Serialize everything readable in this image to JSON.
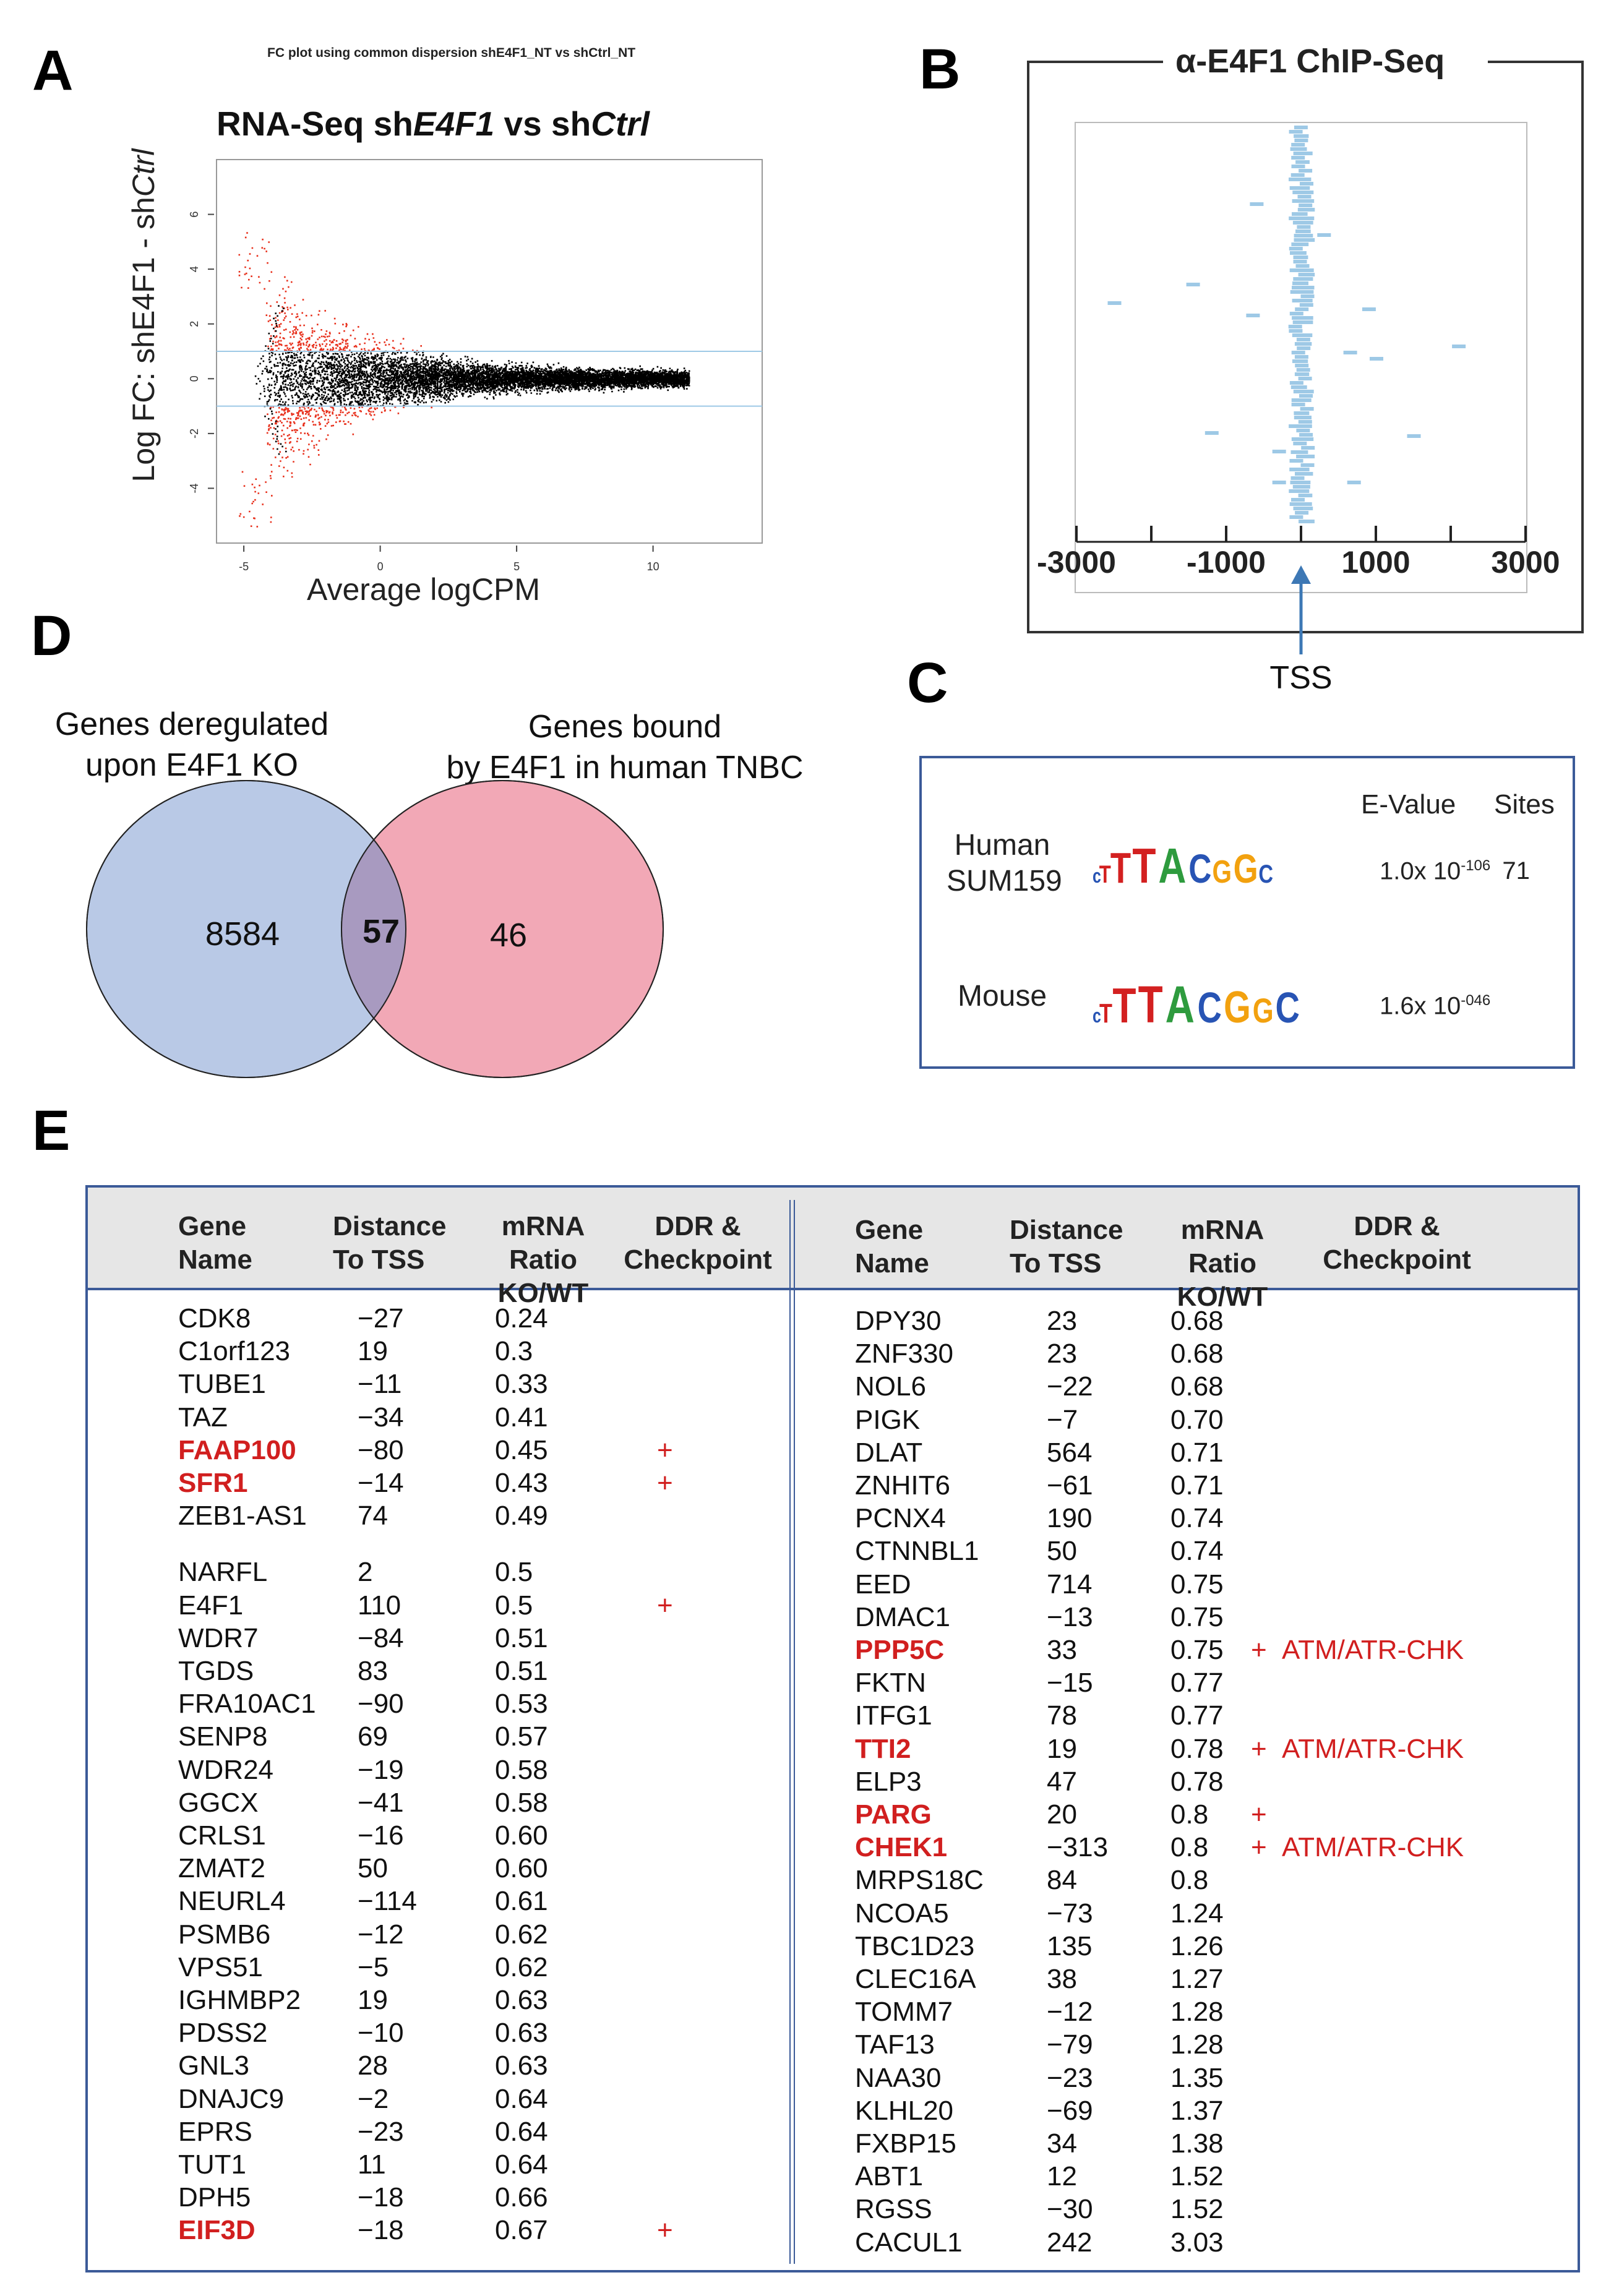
{
  "panels": {
    "A": {
      "letter": "A",
      "small_title": "FC plot using common dispersion shE4F1_NT vs shCtrl_NT",
      "title_parts": [
        {
          "text": "RNA-Seq sh",
          "italic": false
        },
        {
          "text": "E4F1",
          "italic": true
        },
        {
          "text": " vs sh",
          "italic": false
        },
        {
          "text": "Ctrl",
          "italic": true
        }
      ],
      "ylabel_parts": [
        {
          "text": "Log FC: shE4F1 - sh",
          "italic": false
        },
        {
          "text": "Ctrl",
          "italic": true
        }
      ],
      "xlabel": "Average logCPM",
      "chart_data": {
        "type": "scatter",
        "x_ticks": [
          "-5",
          "0",
          "5",
          "10"
        ],
        "y_ticks": [
          "-4",
          "-2",
          "0",
          "2",
          "4",
          "6"
        ],
        "xlim": [
          -6,
          14
        ],
        "ylim": [
          -6,
          8
        ],
        "threshold_lines": [
          -1,
          1
        ],
        "colors": {
          "significant": "#e8301c",
          "not_significant": "#000000",
          "threshold": "#9ec9e6"
        }
      }
    },
    "B": {
      "letter": "B",
      "title": "α-E4F1 ChIP-Seq",
      "x_ticks": [
        "-3000",
        "-1000",
        "1000",
        "3000"
      ],
      "tss_label": "TSS",
      "chart_data": {
        "type": "scatter",
        "xlim": [
          -3000,
          3000
        ],
        "marker_color": "#9ec9e6"
      }
    },
    "C": {
      "letter": "C",
      "col_evalue": "E-Value",
      "col_sites": "Sites",
      "rows": [
        {
          "species_line1": "Human",
          "species_line2": "SUM159",
          "motif": "cTTTACGGC",
          "evalue_base": "1.0x 10",
          "evalue_exp": "-106",
          "sites": "71"
        },
        {
          "species_line1": "Mouse",
          "species_line2": "",
          "motif": "cTTTACGGC",
          "evalue_base": "1.6x 10",
          "evalue_exp": "-046",
          "sites": ""
        }
      ]
    },
    "D": {
      "letter": "D",
      "left_label_line1": "Genes deregulated",
      "left_label_line2": "upon E4F1 KO",
      "right_label_line1": "Genes bound",
      "right_label_line2": "by E4F1 in human TNBC",
      "left_only": "8584",
      "overlap": "57",
      "right_only": "46",
      "colors": {
        "left": "#b9c9e6",
        "right": "#f2a8b6",
        "overlap": "#a89ac0"
      }
    },
    "E": {
      "letter": "E",
      "headers": {
        "gene_1": "Gene",
        "gene_2": "Name",
        "dist_1": "Distance",
        "dist_2": "To TSS",
        "ratio_1": "mRNA Ratio",
        "ratio_2": "KO/WT",
        "ddr_1": "DDR &",
        "ddr_2": "Checkpoint"
      },
      "left_rows": [
        {
          "gene": "CDK8",
          "dist": "−27",
          "ratio": "0.24",
          "ddr": "",
          "note": "",
          "hl": false
        },
        {
          "gene": "C1orf123",
          "dist": "19",
          "ratio": "0.3",
          "ddr": "",
          "note": "",
          "hl": false
        },
        {
          "gene": "TUBE1",
          "dist": "−11",
          "ratio": "0.33",
          "ddr": "",
          "note": "",
          "hl": false
        },
        {
          "gene": "TAZ",
          "dist": "−34",
          "ratio": "0.41",
          "ddr": "",
          "note": "",
          "hl": false
        },
        {
          "gene": "FAAP100",
          "dist": "−80",
          "ratio": "0.45",
          "ddr": "+",
          "note": "",
          "hl": true
        },
        {
          "gene": "SFR1",
          "dist": "−14",
          "ratio": "0.43",
          "ddr": "+",
          "note": "",
          "hl": true
        },
        {
          "gene": "ZEB1-AS1",
          "dist": "74",
          "ratio": "0.49",
          "ddr": "",
          "note": "",
          "hl": false
        },
        {
          "gene": "NARFL",
          "dist": "2",
          "ratio": "0.5",
          "ddr": "",
          "note": "",
          "hl": false
        },
        {
          "gene": "E4F1",
          "dist": "110",
          "ratio": "0.5",
          "ddr": "+",
          "note": "",
          "hl": false
        },
        {
          "gene": "WDR7",
          "dist": "−84",
          "ratio": "0.51",
          "ddr": "",
          "note": "",
          "hl": false
        },
        {
          "gene": "TGDS",
          "dist": "83",
          "ratio": "0.51",
          "ddr": "",
          "note": "",
          "hl": false
        },
        {
          "gene": "FRA10AC1",
          "dist": "−90",
          "ratio": "0.53",
          "ddr": "",
          "note": "",
          "hl": false
        },
        {
          "gene": "SENP8",
          "dist": "69",
          "ratio": "0.57",
          "ddr": "",
          "note": "",
          "hl": false
        },
        {
          "gene": "WDR24",
          "dist": "−19",
          "ratio": "0.58",
          "ddr": "",
          "note": "",
          "hl": false
        },
        {
          "gene": "GGCX",
          "dist": "−41",
          "ratio": "0.58",
          "ddr": "",
          "note": "",
          "hl": false
        },
        {
          "gene": "CRLS1",
          "dist": "−16",
          "ratio": "0.60",
          "ddr": "",
          "note": "",
          "hl": false
        },
        {
          "gene": "ZMAT2",
          "dist": "50",
          "ratio": "0.60",
          "ddr": "",
          "note": "",
          "hl": false
        },
        {
          "gene": "NEURL4",
          "dist": "−114",
          "ratio": "0.61",
          "ddr": "",
          "note": "",
          "hl": false
        },
        {
          "gene": "PSMB6",
          "dist": "−12",
          "ratio": "0.62",
          "ddr": "",
          "note": "",
          "hl": false
        },
        {
          "gene": "VPS51",
          "dist": "−5",
          "ratio": "0.62",
          "ddr": "",
          "note": "",
          "hl": false
        },
        {
          "gene": "IGHMBP2",
          "dist": "19",
          "ratio": "0.63",
          "ddr": "",
          "note": "",
          "hl": false
        },
        {
          "gene": "PDSS2",
          "dist": "−10",
          "ratio": "0.63",
          "ddr": "",
          "note": "",
          "hl": false
        },
        {
          "gene": "GNL3",
          "dist": "28",
          "ratio": "0.63",
          "ddr": "",
          "note": "",
          "hl": false
        },
        {
          "gene": "DNAJC9",
          "dist": "−2",
          "ratio": "0.64",
          "ddr": "",
          "note": "",
          "hl": false
        },
        {
          "gene": "EPRS",
          "dist": "−23",
          "ratio": "0.64",
          "ddr": "",
          "note": "",
          "hl": false
        },
        {
          "gene": "TUT1",
          "dist": "11",
          "ratio": "0.64",
          "ddr": "",
          "note": "",
          "hl": false
        },
        {
          "gene": "DPH5",
          "dist": "−18",
          "ratio": "0.66",
          "ddr": "",
          "note": "",
          "hl": false
        },
        {
          "gene": "EIF3D",
          "dist": "−18",
          "ratio": "0.67",
          "ddr": "+",
          "note": "",
          "hl": true
        }
      ],
      "right_rows": [
        {
          "gene": "DPY30",
          "dist": "23",
          "ratio": "0.68",
          "ddr": "",
          "note": "",
          "hl": false
        },
        {
          "gene": "ZNF330",
          "dist": "23",
          "ratio": "0.68",
          "ddr": "",
          "note": "",
          "hl": false
        },
        {
          "gene": "NOL6",
          "dist": "−22",
          "ratio": "0.68",
          "ddr": "",
          "note": "",
          "hl": false
        },
        {
          "gene": "PIGK",
          "dist": "−7",
          "ratio": "0.70",
          "ddr": "",
          "note": "",
          "hl": false
        },
        {
          "gene": "DLAT",
          "dist": "564",
          "ratio": "0.71",
          "ddr": "",
          "note": "",
          "hl": false
        },
        {
          "gene": "ZNHIT6",
          "dist": "−61",
          "ratio": "0.71",
          "ddr": "",
          "note": "",
          "hl": false
        },
        {
          "gene": "PCNX4",
          "dist": "190",
          "ratio": "0.74",
          "ddr": "",
          "note": "",
          "hl": false
        },
        {
          "gene": "CTNNBL1",
          "dist": "50",
          "ratio": "0.74",
          "ddr": "",
          "note": "",
          "hl": false
        },
        {
          "gene": "EED",
          "dist": "714",
          "ratio": "0.75",
          "ddr": "",
          "note": "",
          "hl": false
        },
        {
          "gene": "DMAC1",
          "dist": "−13",
          "ratio": "0.75",
          "ddr": "",
          "note": "",
          "hl": false
        },
        {
          "gene": "PPP5C",
          "dist": "33",
          "ratio": "0.75",
          "ddr": "+",
          "note": "ATM/ATR-CHK",
          "hl": true
        },
        {
          "gene": "FKTN",
          "dist": "−15",
          "ratio": "0.77",
          "ddr": "",
          "note": "",
          "hl": false
        },
        {
          "gene": "ITFG1",
          "dist": "78",
          "ratio": "0.77",
          "ddr": "",
          "note": "",
          "hl": false
        },
        {
          "gene": "TTI2",
          "dist": "19",
          "ratio": "0.78",
          "ddr": "+",
          "note": "ATM/ATR-CHK",
          "hl": true
        },
        {
          "gene": "ELP3",
          "dist": "47",
          "ratio": "0.78",
          "ddr": "",
          "note": "",
          "hl": false
        },
        {
          "gene": "PARG",
          "dist": "20",
          "ratio": "0.8",
          "ddr": "+",
          "note": "",
          "hl": true
        },
        {
          "gene": "CHEK1",
          "dist": "−313",
          "ratio": "0.8",
          "ddr": "+",
          "note": "ATM/ATR-CHK",
          "hl": true
        },
        {
          "gene": "MRPS18C",
          "dist": "84",
          "ratio": "0.8",
          "ddr": "",
          "note": "",
          "hl": false
        },
        {
          "gene": "NCOA5",
          "dist": "−73",
          "ratio": "1.24",
          "ddr": "",
          "note": "",
          "hl": false
        },
        {
          "gene": "TBC1D23",
          "dist": "135",
          "ratio": "1.26",
          "ddr": "",
          "note": "",
          "hl": false
        },
        {
          "gene": "CLEC16A",
          "dist": "38",
          "ratio": "1.27",
          "ddr": "",
          "note": "",
          "hl": false
        },
        {
          "gene": "TOMM7",
          "dist": "−12",
          "ratio": "1.28",
          "ddr": "",
          "note": "",
          "hl": false
        },
        {
          "gene": "TAF13",
          "dist": "−79",
          "ratio": "1.28",
          "ddr": "",
          "note": "",
          "hl": false
        },
        {
          "gene": "NAA30",
          "dist": "−23",
          "ratio": "1.35",
          "ddr": "",
          "note": "",
          "hl": false
        },
        {
          "gene": "KLHL20",
          "dist": "−69",
          "ratio": "1.37",
          "ddr": "",
          "note": "",
          "hl": false
        },
        {
          "gene": "FXBP15",
          "dist": "34",
          "ratio": "1.38",
          "ddr": "",
          "note": "",
          "hl": false
        },
        {
          "gene": "ABT1",
          "dist": "12",
          "ratio": "1.52",
          "ddr": "",
          "note": "",
          "hl": false
        },
        {
          "gene": "RGSS",
          "dist": "−30",
          "ratio": "1.52",
          "ddr": "",
          "note": "",
          "hl": false
        },
        {
          "gene": "CACUL1",
          "dist": "242",
          "ratio": "3.03",
          "ddr": "",
          "note": "",
          "hl": false
        }
      ],
      "highlight_color": "#d11f1f"
    }
  }
}
